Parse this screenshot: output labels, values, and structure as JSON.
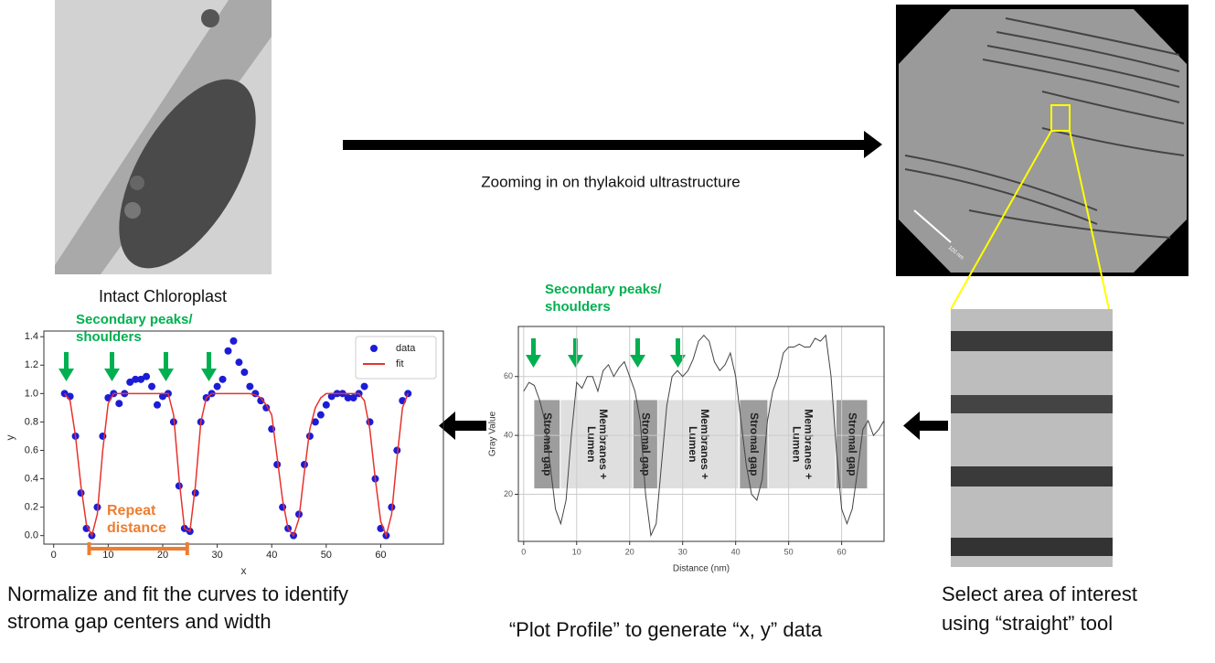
{
  "images": {
    "chloroplast_caption": "Intact Chloroplast",
    "zoom_label": "Zooming in on thylakoid ultrastructure",
    "scale_bar": "100 nm"
  },
  "chart_data": [
    {
      "type": "line",
      "xlabel": "x",
      "ylabel": "y",
      "x": [
        2,
        3,
        4,
        5,
        6,
        7,
        8,
        9,
        10,
        11,
        12,
        13,
        14,
        15,
        16,
        17,
        18,
        19,
        20,
        21,
        22,
        23,
        24,
        25,
        26,
        27,
        28,
        29,
        30,
        31,
        32,
        33,
        34,
        35,
        36,
        37,
        38,
        39,
        40,
        41,
        42,
        43,
        44,
        45,
        46,
        47,
        48,
        49,
        50,
        51,
        52,
        53,
        54,
        55,
        56,
        57,
        58,
        59,
        60,
        61,
        62,
        63,
        64,
        65
      ],
      "series": [
        {
          "name": "data",
          "color": "#1c1cd6",
          "marker": true,
          "values": [
            1.0,
            0.98,
            0.7,
            0.3,
            0.05,
            0.0,
            0.2,
            0.7,
            0.97,
            1.0,
            0.93,
            1.0,
            1.08,
            1.1,
            1.1,
            1.12,
            1.05,
            0.92,
            0.98,
            1.0,
            0.8,
            0.35,
            0.05,
            0.03,
            0.3,
            0.8,
            0.97,
            1.0,
            1.05,
            1.1,
            1.3,
            1.37,
            1.22,
            1.15,
            1.05,
            1.0,
            0.95,
            0.9,
            0.75,
            0.5,
            0.2,
            0.05,
            0.0,
            0.15,
            0.5,
            0.7,
            0.8,
            0.85,
            0.92,
            0.98,
            1.0,
            1.0,
            0.97,
            0.97,
            1.0,
            1.05,
            0.8,
            0.4,
            0.05,
            0.0,
            0.2,
            0.6,
            0.95,
            1.0
          ]
        },
        {
          "name": "fit",
          "color": "#e8322c",
          "marker": false,
          "values": [
            1.0,
            0.95,
            0.7,
            0.35,
            0.08,
            0.0,
            0.15,
            0.6,
            0.93,
            1.0,
            1.0,
            1.0,
            1.0,
            1.0,
            1.0,
            1.0,
            1.0,
            1.0,
            1.0,
            1.0,
            0.85,
            0.4,
            0.05,
            0.03,
            0.35,
            0.8,
            0.97,
            1.0,
            1.0,
            1.0,
            1.0,
            1.0,
            1.0,
            1.0,
            1.0,
            0.99,
            0.97,
            0.92,
            0.85,
            0.55,
            0.25,
            0.05,
            0.0,
            0.12,
            0.45,
            0.75,
            0.9,
            0.97,
            1.0,
            1.0,
            1.0,
            1.0,
            1.0,
            1.0,
            1.0,
            0.95,
            0.75,
            0.4,
            0.1,
            0.0,
            0.15,
            0.55,
            0.9,
            1.0
          ]
        }
      ],
      "xlim": [
        -1.8,
        71.5
      ],
      "ylim": [
        -0.06,
        1.44
      ],
      "xticks": [
        0,
        10,
        20,
        30,
        40,
        50,
        60
      ],
      "yticks": [
        {
          "value": 0,
          "label": "0.0"
        },
        {
          "value": 0.2,
          "label": "0.2"
        },
        {
          "value": 0.4,
          "label": "0.4"
        },
        {
          "value": 0.6,
          "label": "0.6"
        },
        {
          "value": 0.8,
          "label": "0.8"
        },
        {
          "value": 1,
          "label": "1.0"
        },
        {
          "value": 1.2,
          "label": "1.2"
        },
        {
          "value": 1.4,
          "label": "1.4"
        }
      ],
      "legend": "upper right",
      "grid": false,
      "annotations": {
        "peaks": [
          "Secondary peaks/",
          "shoulders"
        ],
        "repeat": [
          "Repeat",
          "distance"
        ]
      }
    },
    {
      "type": "line",
      "xlabel": "Distance (nm)",
      "ylabel": "Gray Value",
      "x": [
        0,
        1,
        2,
        3,
        4,
        5,
        6,
        7,
        8,
        9,
        10,
        11,
        12,
        13,
        14,
        15,
        16,
        17,
        18,
        19,
        20,
        21,
        22,
        23,
        24,
        25,
        26,
        27,
        28,
        29,
        30,
        31,
        32,
        33,
        34,
        35,
        36,
        37,
        38,
        39,
        40,
        41,
        42,
        43,
        44,
        45,
        46,
        47,
        48,
        49,
        50,
        51,
        52,
        53,
        54,
        55,
        56,
        57,
        58,
        59,
        60,
        61,
        62,
        63,
        64,
        65,
        66,
        67,
        68
      ],
      "series": [
        {
          "color": "#444444",
          "values": [
            55,
            58,
            57,
            52,
            45,
            30,
            15,
            10,
            18,
            40,
            58,
            56,
            60,
            60,
            55,
            62,
            64,
            60,
            63,
            65,
            60,
            55,
            45,
            20,
            6,
            10,
            30,
            50,
            60,
            62,
            60,
            62,
            66,
            72,
            74,
            72,
            65,
            62,
            64,
            68,
            60,
            45,
            30,
            20,
            18,
            25,
            45,
            55,
            60,
            68,
            70,
            70,
            71,
            70,
            70,
            73,
            72,
            74,
            60,
            35,
            15,
            10,
            15,
            28,
            42,
            45,
            40,
            42,
            45
          ]
        }
      ],
      "xlim": [
        -1,
        68
      ],
      "ylim": [
        4,
        77
      ],
      "xticks": [
        0,
        10,
        20,
        30,
        40,
        50,
        60
      ],
      "yticks": [
        20,
        40,
        60
      ],
      "grid": true,
      "regions": [
        {
          "label": [
            "Stromal gap"
          ],
          "span": [
            2,
            6.8
          ],
          "color": "#8c8c8c"
        },
        {
          "label": [
            "Membranes +",
            "Lumen"
          ],
          "span": [
            7,
            20.5
          ],
          "color": "#d9d9d9"
        },
        {
          "label": [
            "Stromal gap"
          ],
          "span": [
            20.7,
            25.2
          ],
          "color": "#8c8c8c"
        },
        {
          "label": [
            "Membranes +",
            "Lumen"
          ],
          "span": [
            25.3,
            40.5
          ],
          "color": "#d9d9d9"
        },
        {
          "label": [
            "Stromal gap"
          ],
          "span": [
            40.8,
            46
          ],
          "color": "#8c8c8c"
        },
        {
          "label": [
            "Membranes +",
            "Lumen"
          ],
          "span": [
            46.2,
            58.8
          ],
          "color": "#d9d9d9"
        },
        {
          "label": [
            "Stromal gap"
          ],
          "span": [
            59,
            64.8
          ],
          "color": "#8c8c8c"
        }
      ],
      "band": [
        22,
        52
      ],
      "annotations": {
        "peaks": [
          "Secondary peaks/",
          "shoulders"
        ]
      }
    }
  ],
  "captions": {
    "fit": [
      "Normalize and fit the curves to identify",
      "stroma gap centers and width"
    ],
    "profile": "“Plot Profile” to generate “x, y” data",
    "select": [
      "Select area of interest",
      "using “straight” tool"
    ]
  }
}
